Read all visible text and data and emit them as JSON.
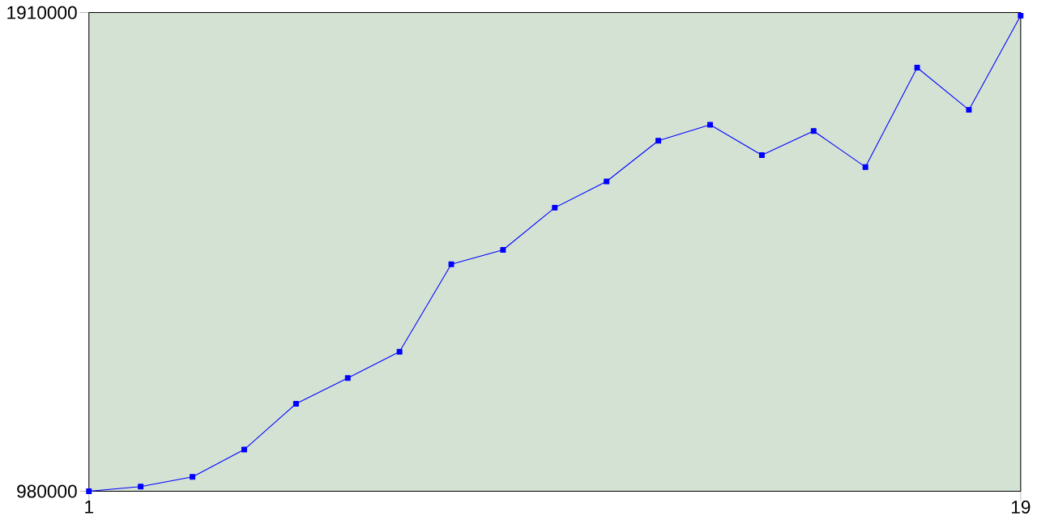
{
  "chart_data": {
    "type": "line",
    "x": [
      1,
      2,
      3,
      4,
      5,
      6,
      7,
      8,
      9,
      10,
      11,
      12,
      13,
      14,
      15,
      16,
      17,
      18,
      19
    ],
    "series": [
      {
        "color": "#0000ff",
        "values": [
          980000,
          989000,
          1008000,
          1061000,
          1150000,
          1200000,
          1251000,
          1421000,
          1449000,
          1531000,
          1582000,
          1661000,
          1692000,
          1633000,
          1680000,
          1610000,
          1803000,
          1721000,
          1904000
        ]
      }
    ],
    "xlim": [
      1,
      19
    ],
    "ylim": [
      980000,
      1910000
    ],
    "xticks": [
      1,
      19
    ],
    "yticks": [
      980000,
      1910000
    ],
    "marker": "square",
    "line_style": "solid",
    "grid": false
  }
}
